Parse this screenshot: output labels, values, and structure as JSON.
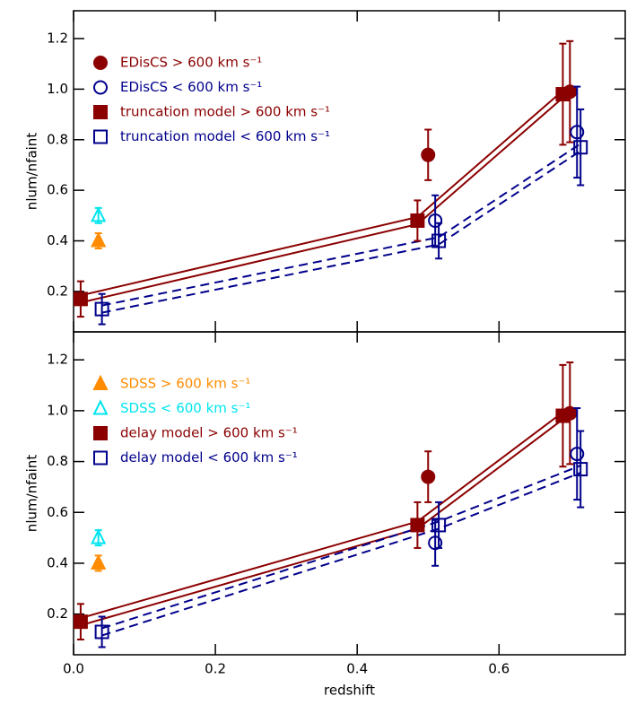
{
  "chart_data": [
    {
      "type": "scatter",
      "ylabel": "nlum/nfaint",
      "xlim": [
        0,
        0.778
      ],
      "ylim": [
        0.04,
        1.31
      ],
      "xticks": [
        0,
        0.2,
        0.4,
        0.6
      ],
      "yticks": [
        0.2,
        0.4,
        0.6,
        0.8,
        {
          "value": 1,
          "label": "1.0"
        },
        1.2
      ],
      "legend_position": "upper left",
      "series": [
        {
          "name": "EDisCS > 600 km s⁻¹",
          "color": "#8b0000",
          "marker": "circle",
          "filled": true,
          "legend": true,
          "x": [
            0.5,
            0.7
          ],
          "values": [
            0.74,
            0.99
          ],
          "errors": [
            0.1,
            0.2
          ]
        },
        {
          "name": "EDisCS < 600 km s⁻¹",
          "color": "#00008b",
          "marker": "circle",
          "filled": false,
          "legend": true,
          "x": [
            0.51,
            0.71
          ],
          "values": [
            0.48,
            0.83
          ],
          "errors": [
            0.1,
            0.18
          ]
        },
        {
          "name": "truncation model > 600 km s⁻¹",
          "color": "#8b0000",
          "marker": "square",
          "filled": true,
          "legend": true,
          "line": "solid",
          "x": [
            0.01,
            0.485,
            0.69
          ],
          "values": [
            0.17,
            0.48,
            0.98
          ],
          "errors": [
            0.07,
            0.08,
            0.2
          ]
        },
        {
          "name": "truncation model < 600 km s⁻¹",
          "color": "#00008b",
          "marker": "square",
          "filled": false,
          "legend": true,
          "line": "dashed",
          "x": [
            0.04,
            0.515,
            0.715
          ],
          "values": [
            0.13,
            0.4,
            0.77
          ],
          "errors": [
            0.06,
            0.07,
            0.15
          ]
        },
        {
          "name": "SDSS > 600 km s⁻¹",
          "color": "#ff8c00",
          "marker": "triangle",
          "filled": true,
          "legend": false,
          "x": [
            0.035
          ],
          "values": [
            0.4
          ],
          "errors": [
            0.03
          ]
        },
        {
          "name": "SDSS < 600 km s⁻¹",
          "color": "#00e5ee",
          "marker": "triangle",
          "filled": false,
          "legend": false,
          "x": [
            0.035
          ],
          "values": [
            0.5
          ],
          "errors": [
            0.03
          ]
        }
      ]
    },
    {
      "type": "scatter",
      "ylabel": "nlum/nfaint",
      "xlabel": "redshift",
      "xlim": [
        0,
        0.778
      ],
      "ylim": [
        0.04,
        1.31
      ],
      "xticks": [
        {
          "value": 0,
          "label": "0.0"
        },
        0.2,
        0.4,
        0.6
      ],
      "yticks": [
        0.2,
        0.4,
        0.6,
        0.8,
        {
          "value": 1,
          "label": "1.0"
        },
        1.2
      ],
      "legend_position": "upper left",
      "series": [
        {
          "name": "SDSS > 600 km s⁻¹",
          "color": "#ff8c00",
          "marker": "triangle",
          "filled": true,
          "legend": true,
          "x": [
            0.035
          ],
          "values": [
            0.4
          ],
          "errors": [
            0.03
          ]
        },
        {
          "name": "SDSS < 600 km s⁻¹",
          "color": "#00e5ee",
          "marker": "triangle",
          "filled": false,
          "legend": true,
          "x": [
            0.035
          ],
          "values": [
            0.5
          ],
          "errors": [
            0.03
          ]
        },
        {
          "name": "delay model > 600 km s⁻¹",
          "color": "#8b0000",
          "marker": "square",
          "filled": true,
          "legend": true,
          "line": "solid",
          "x": [
            0.01,
            0.485,
            0.69
          ],
          "values": [
            0.17,
            0.55,
            0.98
          ],
          "errors": [
            0.07,
            0.09,
            0.2
          ]
        },
        {
          "name": "delay model < 600 km s⁻¹",
          "color": "#00008b",
          "marker": "square",
          "filled": false,
          "legend": true,
          "line": "dashed",
          "x": [
            0.04,
            0.515,
            0.715
          ],
          "values": [
            0.13,
            0.55,
            0.77
          ],
          "errors": [
            0.06,
            0.09,
            0.15
          ]
        },
        {
          "name": "EDisCS > 600 km s⁻¹",
          "color": "#8b0000",
          "marker": "circle",
          "filled": true,
          "legend": false,
          "x": [
            0.5,
            0.7
          ],
          "values": [
            0.74,
            0.99
          ],
          "errors": [
            0.1,
            0.2
          ]
        },
        {
          "name": "EDisCS < 600 km s⁻¹",
          "color": "#00008b",
          "marker": "circle",
          "filled": false,
          "legend": false,
          "x": [
            0.51,
            0.71
          ],
          "values": [
            0.48,
            0.83
          ],
          "errors": [
            0.09,
            0.18
          ]
        }
      ]
    }
  ]
}
